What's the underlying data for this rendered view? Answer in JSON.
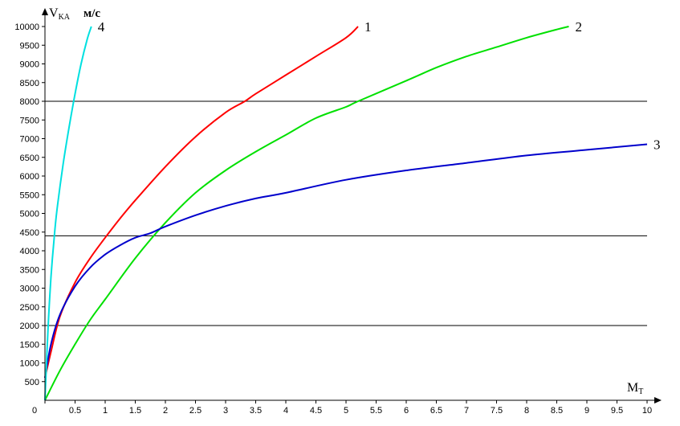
{
  "chart_data": {
    "type": "line",
    "title": "",
    "ylabel": {
      "main": "V",
      "sub": "KA",
      "unit": "м/с"
    },
    "xlabel": {
      "main": "M",
      "sub": "T"
    },
    "xlim": [
      0,
      10
    ],
    "ylim": [
      0,
      10000
    ],
    "x_ticks": [
      "0",
      "0.5",
      "1",
      "1.5",
      "2",
      "2.5",
      "3",
      "3.5",
      "4",
      "4.5",
      "5",
      "5.5",
      "6",
      "6.5",
      "7",
      "7.5",
      "8",
      "8.5",
      "9",
      "9.5",
      "10"
    ],
    "y_ticks": [
      "500",
      "1000",
      "1500",
      "2000",
      "2500",
      "3000",
      "3500",
      "4000",
      "4500",
      "5000",
      "5500",
      "6000",
      "6500",
      "7000",
      "7500",
      "8000",
      "8500",
      "9000",
      "9500",
      "10000"
    ],
    "reference_lines": [
      2000,
      4400,
      8000
    ],
    "grid": false,
    "series": [
      {
        "name": "1",
        "color": "#ff0000",
        "x": [
          0,
          0.1,
          0.25,
          0.5,
          0.75,
          1,
          1.25,
          1.5,
          2,
          2.5,
          3,
          3.32,
          3.5,
          4,
          4.5,
          5,
          5.2
        ],
        "y": [
          600,
          1300,
          2250,
          3150,
          3800,
          4350,
          4870,
          5350,
          6250,
          7050,
          7700,
          8000,
          8200,
          8700,
          9200,
          9700,
          10000
        ]
      },
      {
        "name": "2",
        "color": "#00e000",
        "x": [
          0,
          0.25,
          0.5,
          0.75,
          1,
          1.5,
          2,
          2.5,
          3,
          3.5,
          4,
          4.5,
          5,
          5.2,
          6,
          6.5,
          7,
          7.5,
          8,
          8.5,
          8.7
        ],
        "y": [
          0,
          800,
          1500,
          2150,
          2700,
          3800,
          4750,
          5550,
          6150,
          6650,
          7100,
          7550,
          7850,
          8000,
          8550,
          8900,
          9200,
          9450,
          9700,
          9920,
          10000
        ]
      },
      {
        "name": "3",
        "color": "#0000cc",
        "x": [
          0,
          0.1,
          0.25,
          0.5,
          0.75,
          1,
          1.25,
          1.5,
          1.75,
          2,
          2.5,
          3,
          3.5,
          4,
          5,
          6,
          7,
          8,
          9,
          10
        ],
        "y": [
          600,
          1500,
          2300,
          3050,
          3550,
          3900,
          4150,
          4350,
          4470,
          4650,
          4950,
          5200,
          5400,
          5550,
          5900,
          6150,
          6350,
          6550,
          6700,
          6850
        ]
      },
      {
        "name": "4",
        "color": "#00e0e0",
        "x": [
          0,
          0.05,
          0.1,
          0.15,
          0.2,
          0.3,
          0.4,
          0.5,
          0.6,
          0.7,
          0.77
        ],
        "y": [
          0,
          1900,
          3300,
          4300,
          5100,
          6300,
          7300,
          8200,
          9000,
          9650,
          10000
        ]
      }
    ]
  }
}
